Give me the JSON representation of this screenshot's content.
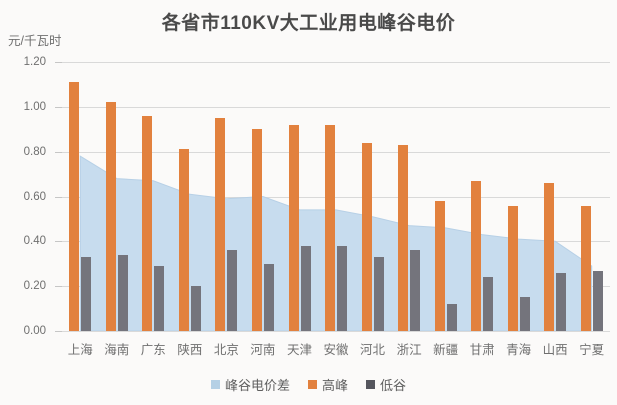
{
  "title": "各省市110KV大工业用电峰谷电价",
  "y_axis": {
    "unit": "元/千瓦时",
    "tick_labels": [
      "1.20",
      "1.00",
      "0.80",
      "0.60",
      "0.40",
      "0.20",
      "0.00"
    ]
  },
  "legend": [
    {
      "key": "price-diff",
      "label": "峰谷电价差",
      "color": "#b5d0e5"
    },
    {
      "key": "peak",
      "label": "高峰",
      "color": "#e2813e"
    },
    {
      "key": "valley",
      "label": "低谷",
      "color": "#55565e"
    }
  ],
  "colors": {
    "area_fill": "#c7dcee",
    "area_edge": "#b7d0e6",
    "peak_bar": "#e2813e",
    "valley_bar": "#74747c",
    "gridline": "#d9d9d9",
    "title_text": "#4a4a4a",
    "axis_text": "#6f6f6f"
  },
  "chart_data": {
    "type": "bar",
    "subtype": "combo-area-bar",
    "title": "各省市110KV大工业用电峰谷电价",
    "ylabel": "元/千瓦时",
    "xlabel": "",
    "ylim": [
      0,
      1.2
    ],
    "ystep": 0.2,
    "grid": true,
    "legend_position": "bottom",
    "categories": [
      "上海",
      "海南",
      "广东",
      "陕西",
      "北京",
      "河南",
      "天津",
      "安徽",
      "河北",
      "浙江",
      "新疆",
      "甘肃",
      "青海",
      "山西",
      "宁夏"
    ],
    "series": [
      {
        "name": "峰谷电价差",
        "type": "area",
        "color": "#c7dcee",
        "edge": "#b7d0e6",
        "values": [
          0.78,
          0.68,
          0.67,
          0.61,
          0.59,
          0.6,
          0.54,
          0.54,
          0.51,
          0.47,
          0.46,
          0.43,
          0.41,
          0.4,
          0.29
        ]
      },
      {
        "name": "高峰",
        "type": "bar",
        "color": "#e2813e",
        "values": [
          1.11,
          1.02,
          0.96,
          0.81,
          0.95,
          0.9,
          0.92,
          0.92,
          0.84,
          0.83,
          0.58,
          0.67,
          0.56,
          0.66,
          0.56
        ]
      },
      {
        "name": "低谷",
        "type": "bar",
        "color": "#74747c",
        "values": [
          0.33,
          0.34,
          0.29,
          0.2,
          0.36,
          0.3,
          0.38,
          0.38,
          0.33,
          0.36,
          0.12,
          0.24,
          0.15,
          0.26,
          0.27
        ]
      }
    ]
  }
}
